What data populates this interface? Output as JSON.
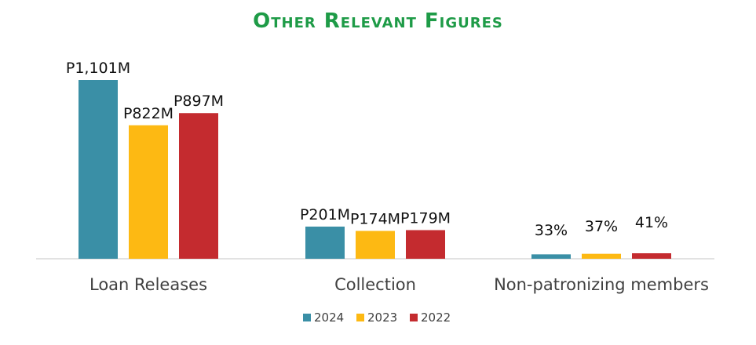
{
  "chart_data": {
    "type": "bar",
    "title": "Other Relevant Figures",
    "xlabel": "",
    "ylabel": "",
    "categories": [
      "Loan Releases",
      "Collection",
      "Non-patronizing members"
    ],
    "series": [
      {
        "name": "2024",
        "color": "#3a8fa6",
        "values": [
          1101,
          201,
          33
        ],
        "labels": [
          "P1,101M",
          "P201M",
          "33%"
        ]
      },
      {
        "name": "2023",
        "color": "#fdb913",
        "values": [
          822,
          174,
          37
        ],
        "labels": [
          "P822M",
          "P174M",
          "37%"
        ]
      },
      {
        "name": "2022",
        "color": "#c42b2f",
        "values": [
          897,
          179,
          41
        ],
        "labels": [
          "P897M",
          "P179M",
          "41%"
        ]
      }
    ],
    "ylim": [
      0,
      1101
    ],
    "grid": false,
    "legend_position": "bottom"
  }
}
